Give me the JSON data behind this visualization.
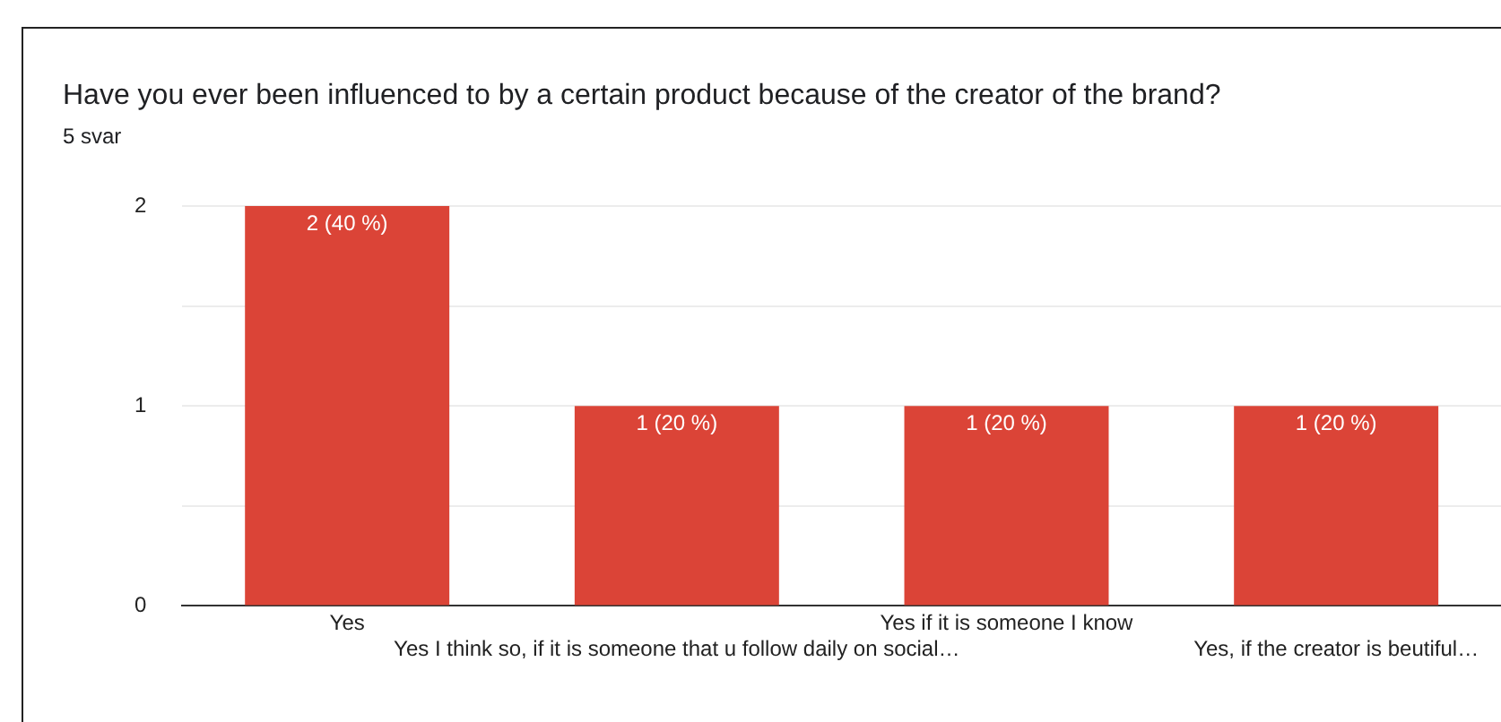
{
  "chart_data": {
    "type": "bar",
    "title": "Have you ever been influenced to by a certain product because of the creator of the brand?",
    "subtitle": "5 svar",
    "categories": [
      "Yes",
      "Yes I think so, if it is someone that u follow daily on social…",
      "Yes if it is someone I know",
      "Yes, if the creator is beutiful…"
    ],
    "values": [
      2,
      1,
      1,
      1
    ],
    "color": "#db4437",
    "value_labels": [
      "2 (40 %)",
      "1 (20 %)",
      "1 (20 %)",
      "1 (20 %)"
    ],
    "ylim": [
      0,
      2
    ],
    "yticks": [
      0,
      {
        "value": 0.5,
        "label": null
      },
      1,
      {
        "value": 1.5,
        "label": null
      },
      2
    ],
    "grid": "y"
  }
}
